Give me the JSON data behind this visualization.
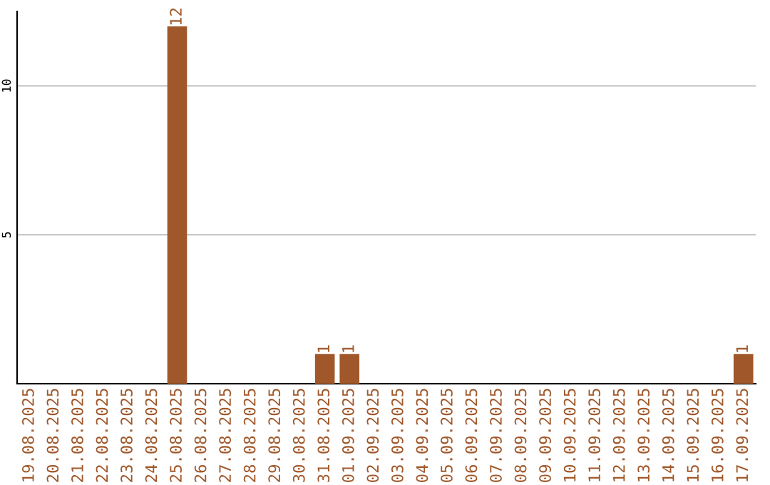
{
  "chart_data": {
    "type": "bar",
    "categories": [
      "19.08.2025",
      "20.08.2025",
      "21.08.2025",
      "22.08.2025",
      "23.08.2025",
      "24.08.2025",
      "25.08.2025",
      "26.08.2025",
      "27.08.2025",
      "28.08.2025",
      "29.08.2025",
      "30.08.2025",
      "31.08.2025",
      "01.09.2025",
      "02.09.2025",
      "03.09.2025",
      "04.09.2025",
      "05.09.2025",
      "06.09.2025",
      "07.09.2025",
      "08.09.2025",
      "09.09.2025",
      "10.09.2025",
      "11.09.2025",
      "12.09.2025",
      "13.09.2025",
      "14.09.2025",
      "15.09.2025",
      "16.09.2025",
      "17.09.2025"
    ],
    "values": [
      0,
      0,
      0,
      0,
      0,
      0,
      12,
      0,
      0,
      0,
      0,
      0,
      1,
      1,
      0,
      0,
      0,
      0,
      0,
      0,
      0,
      0,
      0,
      0,
      0,
      0,
      0,
      0,
      0,
      1
    ],
    "value_labels": [
      null,
      null,
      null,
      null,
      null,
      null,
      "12",
      null,
      null,
      null,
      null,
      null,
      "1",
      "1",
      null,
      null,
      null,
      null,
      null,
      null,
      null,
      null,
      null,
      null,
      null,
      null,
      null,
      null,
      null,
      "1"
    ],
    "color": "#a0582a",
    "ylim": [
      0,
      12.5
    ],
    "yticks": [
      5,
      10
    ],
    "grid": "y"
  }
}
